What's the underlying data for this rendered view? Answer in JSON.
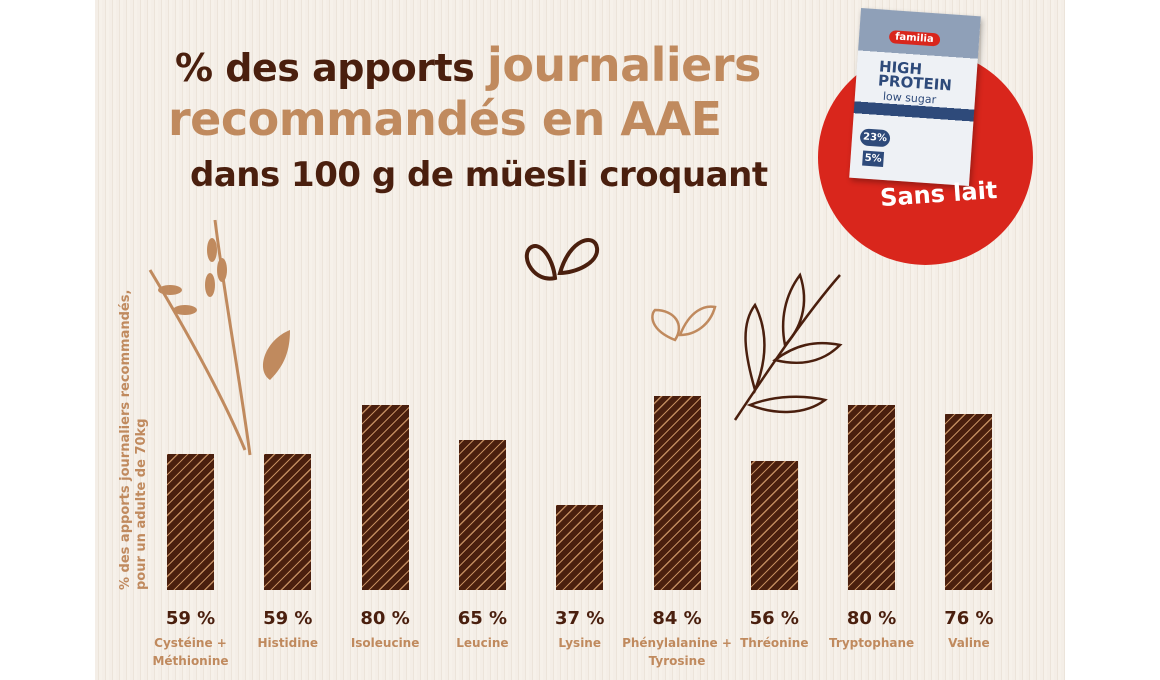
{
  "colors": {
    "bar": "#4a1f0e",
    "accent": "#c08a5e",
    "badge": "#d9261c"
  },
  "title": {
    "line1_dark": "% des apports",
    "line1_accent": "journaliers",
    "line2": "recommandés en AAE",
    "line3": "dans 100 g de müesli croquant"
  },
  "product": {
    "brand": "familia",
    "name": "HIGH PROTEIN",
    "sub": "low sugar",
    "protein": "23%",
    "sugar": "5%"
  },
  "badge_text": "Sans lait",
  "chart_data": {
    "type": "bar",
    "ylabel": "% des apports journaliers recommandés, pour un adulte de 70kg",
    "ylim": [
      0,
      100
    ],
    "grid": false,
    "categories": [
      "Cystéine + Méthionine",
      "Histidine",
      "Isoleucine",
      "Leucine",
      "Lysine",
      "Phénylalanine + Tyrosine",
      "Thréonine",
      "Tryptophane",
      "Valine"
    ],
    "values": [
      59,
      59,
      80,
      65,
      37,
      84,
      56,
      80,
      76
    ],
    "value_labels": [
      "59 %",
      "59 %",
      "80 %",
      "65 %",
      "37 %",
      "84 %",
      "56 %",
      "80 %",
      "76 %"
    ]
  }
}
